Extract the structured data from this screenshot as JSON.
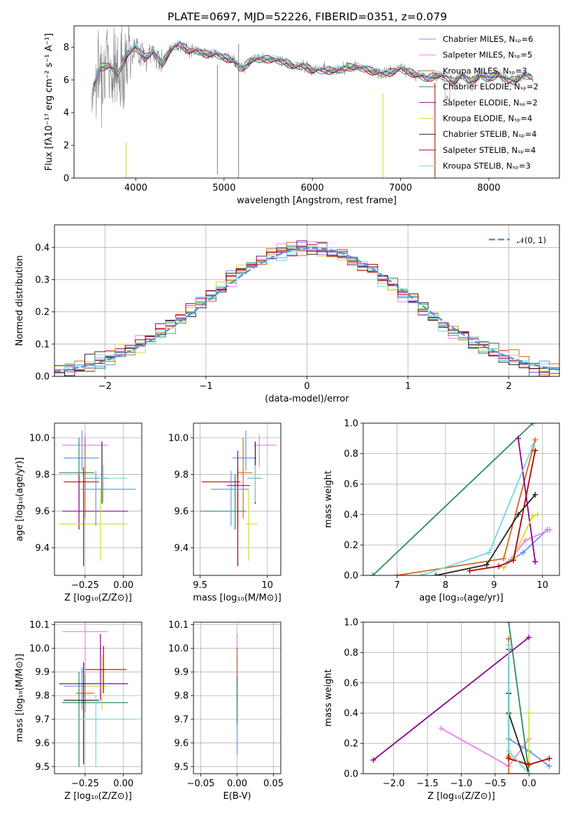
{
  "page_title": "PLATE=0697, MJD=52226, FIBERID=0351, z=0.079",
  "legend_entries": [
    {
      "label": "Chabrier MILES, Nₛₚ=6",
      "color": "#6495ed"
    },
    {
      "label": "Salpeter MILES, Nₛₚ=5",
      "color": "#ee82ee"
    },
    {
      "label": "Kroupa MILES, Nₛₚ=3",
      "color": "#d2691e"
    },
    {
      "label": "Chabrier ELODIE, Nₛₚ=2",
      "color": "#2e8b57"
    },
    {
      "label": "Salpeter ELODIE, Nₛₚ=2",
      "color": "#8b008b"
    },
    {
      "label": "Kroupa ELODIE, Nₛₚ=4",
      "color": "#ccdd33"
    },
    {
      "label": "Chabrier STELIB, Nₛₚ=4",
      "color": "#222222"
    },
    {
      "label": "Salpeter STELIB, Nₛₚ=4",
      "color": "#b00000"
    },
    {
      "label": "Kroupa STELIB, Nₛₚ=3",
      "color": "#70d8e0"
    }
  ],
  "colors": {
    "data": "#808080",
    "normal_curve": "#5b8fd9",
    "grid": "#b0b0b0"
  },
  "chart_data": [
    {
      "id": "spectrum",
      "type": "line",
      "title": "PLATE=0697, MJD=52226, FIBERID=0351, z=0.079",
      "xlabel": "wavelength [Angstrom, rest frame]",
      "ylabel": "Flux [fλ10⁻¹⁷ erg cm⁻² s⁻¹ A⁻¹]",
      "xlim": [
        3300,
        8800
      ],
      "ylim": [
        0,
        9.3
      ],
      "xticks": [
        4000,
        5000,
        6000,
        7000,
        8000
      ],
      "yticks": [
        0,
        2,
        4,
        6,
        8
      ],
      "grid": false,
      "legend_position": "right",
      "data_profile": {
        "x": [
          3500,
          3600,
          3700,
          3800,
          3900,
          4000,
          4100,
          4200,
          4300,
          4400,
          4500,
          4600,
          4700,
          4800,
          4900,
          5000,
          5100,
          5200,
          5300,
          5400,
          5500,
          5600,
          5700,
          5800,
          5900,
          6000,
          6100,
          6200,
          6300,
          6400,
          6500,
          6600,
          6700,
          6800,
          6900,
          7000,
          7100,
          7200,
          7300,
          7400,
          7500,
          7600,
          7700,
          7800,
          7900,
          8000,
          8100,
          8200,
          8300,
          8400,
          8500
        ],
        "y": [
          5.3,
          6.8,
          6.9,
          6.4,
          7.6,
          8.0,
          7.4,
          7.7,
          7.0,
          7.9,
          8.2,
          7.8,
          7.8,
          7.6,
          7.6,
          7.4,
          7.2,
          6.7,
          7.2,
          7.3,
          7.3,
          7.2,
          7.1,
          6.8,
          6.9,
          6.6,
          6.6,
          6.6,
          6.6,
          6.8,
          6.8,
          6.7,
          6.5,
          6.4,
          6.5,
          6.7,
          6.5,
          6.3,
          6.1,
          6.3,
          6.2,
          5.9,
          6.3,
          5.9,
          6.3,
          6.1,
          6.4,
          6.0,
          6.0,
          6.3,
          6.2
        ]
      }
    },
    {
      "id": "residuals",
      "type": "step",
      "xlabel": "(data-model)/error",
      "ylabel": "Normed distribution",
      "xlim": [
        -2.5,
        2.5
      ],
      "ylim": [
        0,
        0.47
      ],
      "xticks": [
        -2,
        -1,
        0,
        1,
        2
      ],
      "yticks": [
        0.0,
        0.1,
        0.2,
        0.3,
        0.4
      ],
      "grid": true,
      "legend": [
        {
          "label": "𝒩(0, 1)"
        }
      ],
      "legend_position": "top-right",
      "normal_reference": {
        "mean": 0,
        "sigma": 1
      }
    },
    {
      "id": "age-vs-Z",
      "type": "scatter",
      "xlabel": "Z [log₁₀(Z/Z⊙)]",
      "ylabel": "age  [log₁₀(age/yr)]",
      "xlim": [
        -0.45,
        0.12
      ],
      "ylim": [
        9.25,
        10.08
      ],
      "xticks": [
        -0.25,
        0.0
      ],
      "xtick_labels": [
        "−0.25",
        "0.00"
      ],
      "yticks": [
        9.4,
        9.6,
        9.8,
        10.0
      ],
      "grid": true,
      "series": [
        {
          "x": -0.27,
          "xerr": [
            0.12,
            0.11
          ],
          "y": 9.89,
          "yerr": [
            0.07,
            0.15
          ]
        },
        {
          "x": -0.25,
          "xerr": [
            0.15,
            0.15
          ],
          "y": 9.96,
          "yerr": [
            0.12,
            0.06
          ]
        },
        {
          "x": -0.25,
          "xerr": [
            0.06,
            0.06
          ],
          "y": 9.81,
          "yerr": [
            0.25,
            0.19
          ]
        },
        {
          "x": -0.29,
          "xerr": [
            0.13,
            0.1
          ],
          "y": 9.81,
          "yerr": [
            0.21,
            0.19
          ]
        },
        {
          "x": -0.29,
          "xerr": [
            0.11,
            0.32
          ],
          "y": 9.6,
          "yerr": [
            0.1,
            0.2
          ]
        },
        {
          "x": -0.15,
          "xerr": [
            0.27,
            0.18
          ],
          "y": 9.53,
          "yerr": [
            0.2,
            0.19
          ]
        },
        {
          "x": -0.14,
          "xerr": [
            0.11,
            0.04
          ],
          "y": 9.78,
          "yerr": [
            0.14,
            0.2
          ]
        },
        {
          "x": -0.26,
          "xerr": [
            0.13,
            0.1
          ],
          "y": 9.76,
          "yerr": [
            0.46,
            0.08
          ]
        },
        {
          "x": -0.13,
          "xerr": [
            0.12,
            0.15
          ],
          "y": 9.78,
          "yerr": [
            0.13,
            0.07
          ]
        },
        {
          "x": -0.18,
          "xerr": [
            0.1,
            0.26
          ],
          "y": 9.72,
          "yerr": [
            0.2,
            0.1
          ]
        }
      ]
    },
    {
      "id": "age-vs-mass",
      "type": "scatter",
      "xlabel": "mass [log₁₀(M/M⊙)]",
      "xlim": [
        9.45,
        10.1
      ],
      "ylim": [
        9.25,
        10.08
      ],
      "xticks": [
        9.5,
        10.0
      ],
      "yticks": [
        9.4,
        9.6,
        9.8,
        10.0
      ],
      "grid": true,
      "series": [
        {
          "x": 9.84,
          "xerr": [
            0.1,
            0.08
          ],
          "y": 9.89,
          "yerr": [
            0.07,
            0.15
          ]
        },
        {
          "x": 9.94,
          "xerr": [
            0.04,
            0.13
          ],
          "y": 9.96,
          "yerr": [
            0.12,
            0.06
          ]
        },
        {
          "x": 9.82,
          "xerr": [
            0.04,
            0.07
          ],
          "y": 9.81,
          "yerr": [
            0.25,
            0.19
          ]
        },
        {
          "x": 9.76,
          "xerr": [
            0.26,
            0.08
          ],
          "y": 9.6,
          "yerr": [
            0.1,
            0.2
          ]
        },
        {
          "x": 9.78,
          "xerr": [
            0.08,
            0.09
          ],
          "y": 9.74,
          "yerr": [
            0.21,
            0.19
          ]
        },
        {
          "x": 9.86,
          "xerr": [
            0.02,
            0.07
          ],
          "y": 9.53,
          "yerr": [
            0.2,
            0.19
          ]
        },
        {
          "x": 9.91,
          "xerr": [
            0.06,
            0.05
          ],
          "y": 9.78,
          "yerr": [
            0.14,
            0.2
          ]
        },
        {
          "x": 9.78,
          "xerr": [
            0.27,
            0.02
          ],
          "y": 9.76,
          "yerr": [
            0.46,
            0.08
          ]
        },
        {
          "x": 9.91,
          "xerr": [
            0.06,
            0.05
          ],
          "y": 9.78,
          "yerr": [
            0.13,
            0.07
          ]
        },
        {
          "x": 9.73,
          "xerr": [
            0.15,
            0.13
          ],
          "y": 9.72,
          "yerr": [
            0.2,
            0.1
          ]
        }
      ]
    },
    {
      "id": "mass-weight-vs-age",
      "type": "line",
      "xlabel": "age  [log₁₀(age/yr)]",
      "ylabel": "mass weight",
      "xlim": [
        6.3,
        10.35
      ],
      "ylim": [
        0,
        1
      ],
      "xticks": [
        7,
        8,
        9,
        10
      ],
      "yticks": [
        0.0,
        0.2,
        0.4,
        0.6,
        0.8,
        1.0
      ],
      "grid": true,
      "series": [
        {
          "name": "Chabrier MILES",
          "x": [
            9.3,
            9.6,
            10.1
          ],
          "y": [
            0.09,
            0.15,
            0.3
          ]
        },
        {
          "name": "Salpeter MILES",
          "x": [
            9.2,
            9.65,
            10.15
          ],
          "y": [
            0.05,
            0.23,
            0.3
          ]
        },
        {
          "name": "Kroupa MILES",
          "x": [
            7.0,
            9.2,
            9.85
          ],
          "y": [
            0.0,
            0.11,
            0.89
          ]
        },
        {
          "name": "Chabrier ELODIE",
          "x": [
            6.5,
            9.8
          ],
          "y": [
            0.0,
            1.0
          ]
        },
        {
          "name": "Salpeter ELODIE",
          "x": [
            9.5,
            9.85
          ],
          "y": [
            0.9,
            0.09
          ]
        },
        {
          "name": "Kroupa ELODIE",
          "x": [
            9.2,
            9.4,
            9.8,
            9.9
          ],
          "y": [
            0.05,
            0.12,
            0.39,
            0.4
          ]
        },
        {
          "name": "Chabrier STELIB",
          "x": [
            7.8,
            8.85,
            9.5,
            9.85
          ],
          "y": [
            0.0,
            0.07,
            0.4,
            0.53
          ]
        },
        {
          "name": "Salpeter STELIB",
          "x": [
            8.5,
            9.1,
            9.4,
            9.85
          ],
          "y": [
            0.03,
            0.06,
            0.1,
            0.82
          ]
        },
        {
          "name": "Kroupa STELIB",
          "x": [
            7.5,
            8.9,
            9.8
          ],
          "y": [
            0.0,
            0.15,
            0.85
          ]
        }
      ]
    },
    {
      "id": "mass-vs-Z",
      "type": "scatter",
      "xlabel": "Z [log₁₀(Z/Z⊙)]",
      "ylabel": "mass [log₁₀(M/M⊙)]",
      "xlim": [
        -0.45,
        0.12
      ],
      "ylim": [
        9.47,
        10.11
      ],
      "xticks": [
        -0.25,
        0.0
      ],
      "xtick_labels": [
        "−0.25",
        "0.00"
      ],
      "yticks": [
        9.5,
        9.6,
        9.7,
        9.8,
        9.9,
        10.0,
        10.1
      ],
      "grid": true,
      "series": [
        {
          "x": -0.27,
          "xerr": [
            0.12,
            0.11
          ],
          "y": 9.84,
          "yerr": [
            0.1,
            0.08
          ]
        },
        {
          "x": -0.25,
          "xerr": [
            0.15,
            0.15
          ],
          "y": 10.07,
          "yerr": [
            0.18,
            0.04
          ]
        },
        {
          "x": -0.25,
          "xerr": [
            0.06,
            0.06
          ],
          "y": 9.81,
          "yerr": [
            0.08,
            0.08
          ]
        },
        {
          "x": -0.29,
          "xerr": [
            0.11,
            0.32
          ],
          "y": 9.77,
          "yerr": [
            0.27,
            0.13
          ]
        },
        {
          "x": -0.15,
          "xerr": [
            0.27,
            0.18
          ],
          "y": 9.85,
          "yerr": [
            0.07,
            0.21
          ]
        },
        {
          "x": -0.14,
          "xerr": [
            0.11,
            0.04
          ],
          "y": 9.84,
          "yerr": [
            0.1,
            0.13
          ]
        },
        {
          "x": -0.26,
          "xerr": [
            0.13,
            0.1
          ],
          "y": 9.78,
          "yerr": [
            0.27,
            0.16
          ]
        },
        {
          "x": -0.13,
          "xerr": [
            0.12,
            0.15
          ],
          "y": 9.91,
          "yerr": [
            0.1,
            0.1
          ]
        },
        {
          "x": -0.18,
          "xerr": [
            0.1,
            0.26
          ],
          "y": 9.7,
          "yerr": [
            0.2,
            0.1
          ]
        }
      ]
    },
    {
      "id": "mass-vs-EBV",
      "type": "scatter",
      "xlabel": "E(B-V)",
      "xlim": [
        -0.06,
        0.06
      ],
      "ylim": [
        9.47,
        10.11
      ],
      "xticks": [
        -0.05,
        0.0,
        0.05
      ],
      "xtick_labels": [
        "−0.05",
        "0.00",
        "0.05"
      ],
      "yticks": [
        9.5,
        9.6,
        9.7,
        9.8,
        9.9,
        10.0,
        10.1
      ],
      "grid": true,
      "series": [
        {
          "x": 0.0,
          "y": 9.84,
          "yerr": [
            0.29,
            0.22
          ]
        },
        {
          "x": 0.0,
          "y": 9.95,
          "yerr": [
            0.12,
            0.1
          ]
        },
        {
          "x": 0.0,
          "y": 9.82,
          "yerr": [
            0.05,
            0.18
          ]
        },
        {
          "x": 0.0,
          "y": 9.78,
          "yerr": [
            0.1,
            0.1
          ]
        }
      ]
    },
    {
      "id": "mass-weight-vs-Z",
      "type": "line",
      "xlabel": "Z [log₁₀(Z/Z⊙)]",
      "ylabel": "mass weight",
      "xlim": [
        -2.45,
        0.45
      ],
      "ylim": [
        0,
        1
      ],
      "xticks": [
        -2.0,
        -1.5,
        -1.0,
        -0.5,
        0.0
      ],
      "xtick_labels": [
        "−2.0",
        "−1.5",
        "−1.0",
        "−0.5",
        "0.0"
      ],
      "yticks": [
        0.0,
        0.2,
        0.4,
        0.6,
        0.8,
        1.0
      ],
      "grid": true,
      "series": [
        {
          "name": "Chabrier MILES",
          "x": [
            -0.3,
            0.0,
            0.3
          ],
          "y": [
            0.23,
            0.15,
            0.05
          ]
        },
        {
          "name": "Salpeter MILES",
          "x": [
            -1.3,
            -0.3,
            0.0
          ],
          "y": [
            0.3,
            0.05,
            0.23
          ]
        },
        {
          "name": "Kroupa MILES",
          "x": [
            -0.3,
            -0.3,
            -0.3,
            0.0
          ],
          "y": [
            0.89,
            0.11,
            0.0,
            0.0
          ]
        },
        {
          "name": "Chabrier ELODIE",
          "x": [
            -0.3,
            0.0
          ],
          "y": [
            1.0,
            0.0
          ]
        },
        {
          "name": "Salpeter ELODIE",
          "x": [
            -2.3,
            0.0
          ],
          "y": [
            0.09,
            0.9
          ]
        },
        {
          "name": "Kroupa ELODIE",
          "x": [
            -0.3,
            -0.3,
            0.0,
            0.0
          ],
          "y": [
            0.39,
            0.12,
            0.05,
            0.4
          ]
        },
        {
          "name": "Chabrier STELIB",
          "x": [
            -0.3,
            -0.3,
            0.0
          ],
          "y": [
            0.53,
            0.4,
            0.0
          ]
        },
        {
          "name": "Salpeter STELIB",
          "x": [
            -0.3,
            -0.3,
            0.0,
            0.3
          ],
          "y": [
            0.82,
            0.1,
            0.06,
            0.1
          ]
        },
        {
          "name": "Kroupa STELIB",
          "x": [
            -0.3,
            -0.3,
            0.0
          ],
          "y": [
            0.85,
            0.15,
            0.0
          ]
        }
      ]
    }
  ]
}
